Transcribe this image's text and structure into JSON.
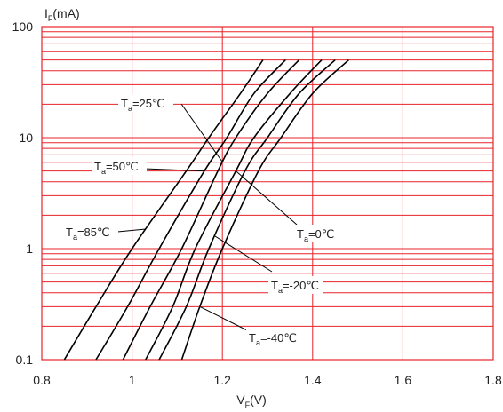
{
  "chart_data": {
    "type": "line",
    "xlabel": {
      "main": "V",
      "sub": "F",
      "unit": "(V)"
    },
    "ylabel": {
      "main": "I",
      "sub": "F",
      "unit": "(mA)"
    },
    "xlim": [
      0.8,
      1.8
    ],
    "ylim": [
      0.1,
      100
    ],
    "yscale": "log",
    "grid": true,
    "grid_color": "#e8232a",
    "line_color": "#000000",
    "x_ticks": [
      "0.8",
      "1",
      "1.2",
      "1.4",
      "1.6",
      "1.8"
    ],
    "y_ticks": [
      "0.1",
      "1",
      "10",
      "100"
    ],
    "series": [
      {
        "name": "Ta=85°C",
        "label": {
          "main": "T",
          "sub": "a",
          "rest": "=85℃"
        },
        "points": [
          [
            0.85,
            0.1
          ],
          [
            0.92,
            0.3
          ],
          [
            1.0,
            1.0
          ],
          [
            1.12,
            5.0
          ],
          [
            1.17,
            10
          ],
          [
            1.24,
            25
          ],
          [
            1.29,
            50
          ]
        ]
      },
      {
        "name": "Ta=50°C",
        "label": {
          "main": "T",
          "sub": "a",
          "rest": "=50℃"
        },
        "points": [
          [
            0.92,
            0.1
          ],
          [
            0.99,
            0.3
          ],
          [
            1.06,
            1.0
          ],
          [
            1.16,
            5.0
          ],
          [
            1.21,
            10
          ],
          [
            1.27,
            25
          ],
          [
            1.34,
            50
          ]
        ]
      },
      {
        "name": "Ta=25°C",
        "label": {
          "main": "T",
          "sub": "a",
          "rest": "=25℃"
        },
        "points": [
          [
            0.98,
            0.1
          ],
          [
            1.04,
            0.3
          ],
          [
            1.11,
            1.0
          ],
          [
            1.19,
            5.0
          ],
          [
            1.23,
            10
          ],
          [
            1.3,
            25
          ],
          [
            1.37,
            50
          ]
        ]
      },
      {
        "name": "Ta=0°C",
        "label": {
          "main": "T",
          "sub": "a",
          "rest": "=0℃"
        },
        "points": [
          [
            1.03,
            0.1
          ],
          [
            1.09,
            0.3
          ],
          [
            1.14,
            1.0
          ],
          [
            1.23,
            5.0
          ],
          [
            1.27,
            10
          ],
          [
            1.35,
            25
          ],
          [
            1.42,
            50
          ]
        ]
      },
      {
        "name": "Ta=-20°C",
        "label": {
          "main": "T",
          "sub": "a",
          "rest": "=-20℃"
        },
        "points": [
          [
            1.06,
            0.1
          ],
          [
            1.12,
            0.3
          ],
          [
            1.17,
            1.0
          ],
          [
            1.25,
            5.0
          ],
          [
            1.3,
            10
          ],
          [
            1.37,
            25
          ],
          [
            1.45,
            50
          ]
        ]
      },
      {
        "name": "Ta=-40°C",
        "label": {
          "main": "T",
          "sub": "a",
          "rest": "=-40℃"
        },
        "points": [
          [
            1.11,
            0.1
          ],
          [
            1.15,
            0.3
          ],
          [
            1.2,
            1.0
          ],
          [
            1.28,
            5.0
          ],
          [
            1.33,
            10
          ],
          [
            1.4,
            25
          ],
          [
            1.48,
            50
          ]
        ]
      }
    ]
  }
}
